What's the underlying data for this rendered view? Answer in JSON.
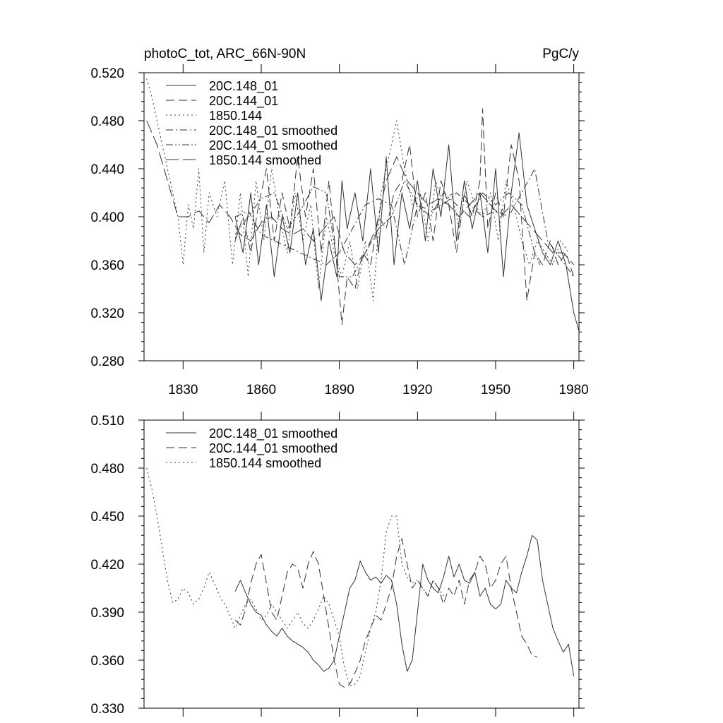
{
  "chart_data": [
    {
      "type": "line",
      "title_left": "photoC_tot, ARC_66N-90N",
      "title_right": "PgC/y",
      "xlim": [
        1815,
        1982
      ],
      "ylim": [
        0.28,
        0.52
      ],
      "xticks": [
        1830,
        1860,
        1890,
        1920,
        1950,
        1980
      ],
      "xtick_labels": [
        "1830",
        "1860",
        "1890",
        "1920",
        "1950",
        "1980"
      ],
      "yticks": [
        0.28,
        0.32,
        0.36,
        0.4,
        0.44,
        0.48,
        0.52
      ],
      "ytick_labels": [
        "0.280",
        "0.320",
        "0.360",
        "0.400",
        "0.440",
        "0.480",
        "0.520"
      ],
      "legend": "top-left",
      "series": [
        {
          "name": "20C.148_01",
          "style": "solid",
          "x": [
            1850,
            1853,
            1856,
            1859,
            1862,
            1865,
            1868,
            1871,
            1874,
            1877,
            1880,
            1883,
            1886,
            1889,
            1891,
            1893,
            1896,
            1899,
            1902,
            1905,
            1908,
            1911,
            1914,
            1917,
            1920,
            1923,
            1926,
            1929,
            1932,
            1935,
            1938,
            1941,
            1944,
            1947,
            1950,
            1953,
            1956,
            1959,
            1962,
            1965,
            1968,
            1971,
            1974,
            1977,
            1980,
            1982
          ],
          "values": [
            0.4,
            0.37,
            0.42,
            0.36,
            0.41,
            0.35,
            0.4,
            0.37,
            0.42,
            0.36,
            0.39,
            0.33,
            0.38,
            0.35,
            0.43,
            0.39,
            0.42,
            0.38,
            0.44,
            0.37,
            0.45,
            0.36,
            0.42,
            0.39,
            0.43,
            0.38,
            0.44,
            0.4,
            0.46,
            0.38,
            0.43,
            0.39,
            0.42,
            0.37,
            0.44,
            0.35,
            0.42,
            0.47,
            0.41,
            0.39,
            0.37,
            0.36,
            0.38,
            0.36,
            0.32,
            0.305
          ]
        },
        {
          "name": "20C.144_01",
          "style": "dashed",
          "x": [
            1850,
            1853,
            1856,
            1859,
            1862,
            1865,
            1868,
            1871,
            1874,
            1877,
            1880,
            1883,
            1886,
            1889,
            1891,
            1893,
            1896,
            1899,
            1902,
            1905,
            1908,
            1911,
            1914,
            1917,
            1920,
            1923,
            1926,
            1929,
            1932,
            1935,
            1938,
            1941,
            1944,
            1945,
            1947,
            1950,
            1953,
            1956,
            1959,
            1962,
            1965,
            1968,
            1971,
            1974,
            1977,
            1980
          ],
          "values": [
            0.38,
            0.4,
            0.37,
            0.41,
            0.44,
            0.38,
            0.42,
            0.39,
            0.45,
            0.4,
            0.44,
            0.37,
            0.43,
            0.36,
            0.31,
            0.35,
            0.34,
            0.37,
            0.36,
            0.4,
            0.39,
            0.42,
            0.43,
            0.46,
            0.4,
            0.42,
            0.38,
            0.43,
            0.41,
            0.37,
            0.42,
            0.4,
            0.43,
            0.49,
            0.39,
            0.42,
            0.4,
            0.46,
            0.43,
            0.33,
            0.37,
            0.36,
            0.38,
            0.36,
            0.37,
            0.35
          ]
        },
        {
          "name": "1850.144",
          "style": "dotted",
          "x": [
            1816,
            1818,
            1820,
            1822,
            1824,
            1826,
            1828,
            1830,
            1832,
            1834,
            1836,
            1838,
            1840,
            1843,
            1846,
            1849,
            1852,
            1855,
            1858,
            1861,
            1864,
            1867,
            1870,
            1873,
            1876,
            1879,
            1882,
            1885,
            1888,
            1891,
            1894,
            1897,
            1900,
            1903,
            1906,
            1909,
            1912,
            1915,
            1918,
            1921,
            1924,
            1927,
            1930,
            1933,
            1936,
            1939,
            1942,
            1945,
            1948,
            1951,
            1954,
            1957,
            1960,
            1963,
            1966,
            1969,
            1972,
            1975,
            1978
          ],
          "values": [
            0.515,
            0.5,
            0.48,
            0.46,
            0.44,
            0.42,
            0.4,
            0.36,
            0.41,
            0.39,
            0.44,
            0.37,
            0.42,
            0.4,
            0.43,
            0.36,
            0.42,
            0.35,
            0.43,
            0.38,
            0.44,
            0.4,
            0.37,
            0.42,
            0.38,
            0.41,
            0.34,
            0.4,
            0.37,
            0.35,
            0.38,
            0.34,
            0.38,
            0.33,
            0.42,
            0.45,
            0.48,
            0.44,
            0.41,
            0.42,
            0.38,
            0.43,
            0.41,
            0.42,
            0.39,
            0.43,
            0.41,
            0.4,
            0.42,
            0.38,
            0.43,
            0.41,
            0.38,
            0.36,
            0.38,
            0.37,
            0.36,
            0.38,
            0.37
          ]
        },
        {
          "name": "20C.148_01 smoothed",
          "style": "dashdot",
          "x": [
            1850,
            1855,
            1860,
            1865,
            1870,
            1875,
            1880,
            1885,
            1890,
            1895,
            1900,
            1905,
            1910,
            1915,
            1920,
            1925,
            1930,
            1935,
            1940,
            1945,
            1950,
            1955,
            1960,
            1965,
            1970,
            1975,
            1980
          ],
          "values": [
            0.4,
            0.405,
            0.385,
            0.38,
            0.375,
            0.37,
            0.365,
            0.36,
            0.37,
            0.39,
            0.41,
            0.415,
            0.41,
            0.36,
            0.41,
            0.405,
            0.41,
            0.42,
            0.41,
            0.4,
            0.405,
            0.4,
            0.42,
            0.44,
            0.38,
            0.365,
            0.35
          ]
        },
        {
          "name": "20C.144_01 smoothed",
          "style": "dashdotdot",
          "x": [
            1850,
            1855,
            1860,
            1865,
            1870,
            1875,
            1880,
            1885,
            1890,
            1895,
            1900,
            1905,
            1910,
            1915,
            1920,
            1925,
            1930,
            1935,
            1940,
            1945,
            1950,
            1955,
            1960,
            1965,
            1967
          ],
          "values": [
            0.385,
            0.4,
            0.415,
            0.42,
            0.39,
            0.405,
            0.425,
            0.42,
            0.35,
            0.35,
            0.37,
            0.39,
            0.4,
            0.43,
            0.41,
            0.4,
            0.42,
            0.41,
            0.4,
            0.42,
            0.41,
            0.42,
            0.41,
            0.37,
            0.36
          ]
        },
        {
          "name": "1850.144 smoothed",
          "style": "longdash",
          "x": [
            1816,
            1820,
            1824,
            1828,
            1832,
            1836,
            1840,
            1844,
            1848,
            1852,
            1856,
            1860,
            1864,
            1868,
            1872,
            1876,
            1880,
            1884,
            1888,
            1892,
            1896,
            1900,
            1904,
            1908,
            1912,
            1916,
            1920,
            1924,
            1928,
            1932,
            1936,
            1940,
            1944,
            1948,
            1952,
            1956,
            1960,
            1964,
            1968,
            1972,
            1976,
            1980
          ],
          "values": [
            0.48,
            0.46,
            0.43,
            0.4,
            0.4,
            0.405,
            0.395,
            0.41,
            0.4,
            0.385,
            0.38,
            0.395,
            0.4,
            0.39,
            0.385,
            0.39,
            0.38,
            0.39,
            0.4,
            0.37,
            0.36,
            0.37,
            0.39,
            0.43,
            0.45,
            0.43,
            0.42,
            0.41,
            0.415,
            0.41,
            0.4,
            0.41,
            0.42,
            0.41,
            0.4,
            0.41,
            0.4,
            0.39,
            0.38,
            0.37,
            0.37,
            0.36
          ]
        }
      ]
    },
    {
      "type": "line",
      "xlim": [
        1815,
        1982
      ],
      "ylim": [
        0.33,
        0.51
      ],
      "xticks": [
        1830,
        1860,
        1890,
        1920,
        1950,
        1980
      ],
      "yticks": [
        0.33,
        0.36,
        0.39,
        0.42,
        0.45,
        0.48,
        0.51
      ],
      "ytick_labels": [
        "0.330",
        "0.360",
        "0.390",
        "0.420",
        "0.450",
        "0.480",
        "0.510"
      ],
      "legend": "top-left",
      "series": [
        {
          "name": "20C.148_01 smoothed",
          "style": "solid",
          "x": [
            1850,
            1852,
            1854,
            1856,
            1858,
            1860,
            1862,
            1864,
            1866,
            1868,
            1870,
            1872,
            1874,
            1876,
            1878,
            1880,
            1882,
            1884,
            1886,
            1888,
            1890,
            1892,
            1894,
            1896,
            1898,
            1900,
            1902,
            1904,
            1906,
            1908,
            1910,
            1912,
            1914,
            1916,
            1918,
            1920,
            1922,
            1924,
            1926,
            1928,
            1930,
            1932,
            1934,
            1936,
            1938,
            1940,
            1942,
            1944,
            1946,
            1948,
            1950,
            1952,
            1954,
            1956,
            1958,
            1960,
            1962,
            1964,
            1966,
            1968,
            1970,
            1972,
            1974,
            1976,
            1978,
            1980
          ],
          "values": [
            0.403,
            0.41,
            0.402,
            0.395,
            0.39,
            0.388,
            0.382,
            0.378,
            0.375,
            0.38,
            0.375,
            0.372,
            0.37,
            0.368,
            0.365,
            0.36,
            0.357,
            0.353,
            0.355,
            0.36,
            0.375,
            0.39,
            0.405,
            0.41,
            0.422,
            0.415,
            0.41,
            0.412,
            0.408,
            0.413,
            0.41,
            0.395,
            0.37,
            0.353,
            0.36,
            0.39,
            0.42,
            0.41,
            0.405,
            0.402,
            0.412,
            0.425,
            0.412,
            0.42,
            0.41,
            0.408,
            0.415,
            0.4,
            0.405,
            0.395,
            0.392,
            0.395,
            0.41,
            0.405,
            0.402,
            0.415,
            0.425,
            0.438,
            0.435,
            0.41,
            0.395,
            0.38,
            0.372,
            0.365,
            0.37,
            0.35
          ]
        },
        {
          "name": "20C.144_01 smoothed",
          "style": "dashed",
          "x": [
            1850,
            1852,
            1854,
            1856,
            1858,
            1860,
            1862,
            1864,
            1866,
            1868,
            1870,
            1872,
            1874,
            1876,
            1878,
            1880,
            1882,
            1884,
            1886,
            1888,
            1890,
            1892,
            1894,
            1896,
            1898,
            1900,
            1902,
            1904,
            1906,
            1908,
            1910,
            1912,
            1914,
            1916,
            1918,
            1920,
            1922,
            1924,
            1926,
            1928,
            1930,
            1932,
            1934,
            1936,
            1938,
            1940,
            1942,
            1944,
            1946,
            1948,
            1950,
            1952,
            1954,
            1956,
            1958,
            1960,
            1962,
            1964,
            1966
          ],
          "values": [
            0.385,
            0.382,
            0.392,
            0.408,
            0.42,
            0.426,
            0.408,
            0.39,
            0.385,
            0.4,
            0.415,
            0.42,
            0.418,
            0.405,
            0.42,
            0.428,
            0.42,
            0.4,
            0.38,
            0.36,
            0.345,
            0.343,
            0.345,
            0.352,
            0.36,
            0.372,
            0.38,
            0.388,
            0.385,
            0.395,
            0.405,
            0.425,
            0.436,
            0.42,
            0.405,
            0.41,
            0.405,
            0.4,
            0.41,
            0.405,
            0.395,
            0.405,
            0.4,
            0.41,
            0.395,
            0.41,
            0.415,
            0.425,
            0.42,
            0.405,
            0.41,
            0.42,
            0.425,
            0.405,
            0.39,
            0.375,
            0.37,
            0.363,
            0.362
          ]
        },
        {
          "name": "1850.144 smoothed",
          "style": "dotted",
          "x": [
            1816,
            1818,
            1820,
            1822,
            1824,
            1826,
            1828,
            1830,
            1832,
            1834,
            1836,
            1838,
            1840,
            1842,
            1844,
            1846,
            1848,
            1850,
            1852,
            1854,
            1856,
            1858,
            1860,
            1862,
            1864,
            1866,
            1868,
            1870,
            1872,
            1874,
            1876,
            1878,
            1880,
            1882,
            1884,
            1886,
            1888,
            1890,
            1892,
            1894,
            1896,
            1898,
            1900,
            1902,
            1904,
            1906,
            1908,
            1910,
            1912,
            1914,
            1916,
            1918,
            1920,
            1922,
            1924,
            1926,
            1928,
            1930
          ],
          "values": [
            0.48,
            0.467,
            0.45,
            0.43,
            0.41,
            0.396,
            0.398,
            0.405,
            0.402,
            0.395,
            0.398,
            0.405,
            0.415,
            0.408,
            0.4,
            0.395,
            0.388,
            0.38,
            0.388,
            0.395,
            0.398,
            0.392,
            0.385,
            0.388,
            0.395,
            0.39,
            0.385,
            0.38,
            0.385,
            0.39,
            0.383,
            0.38,
            0.385,
            0.392,
            0.4,
            0.395,
            0.385,
            0.375,
            0.355,
            0.344,
            0.345,
            0.35,
            0.365,
            0.38,
            0.39,
            0.41,
            0.44,
            0.45,
            0.45,
            0.42,
            0.412,
            0.408,
            0.41,
            0.405,
            0.4,
            0.41,
            0.405,
            0.4
          ]
        }
      ]
    }
  ]
}
